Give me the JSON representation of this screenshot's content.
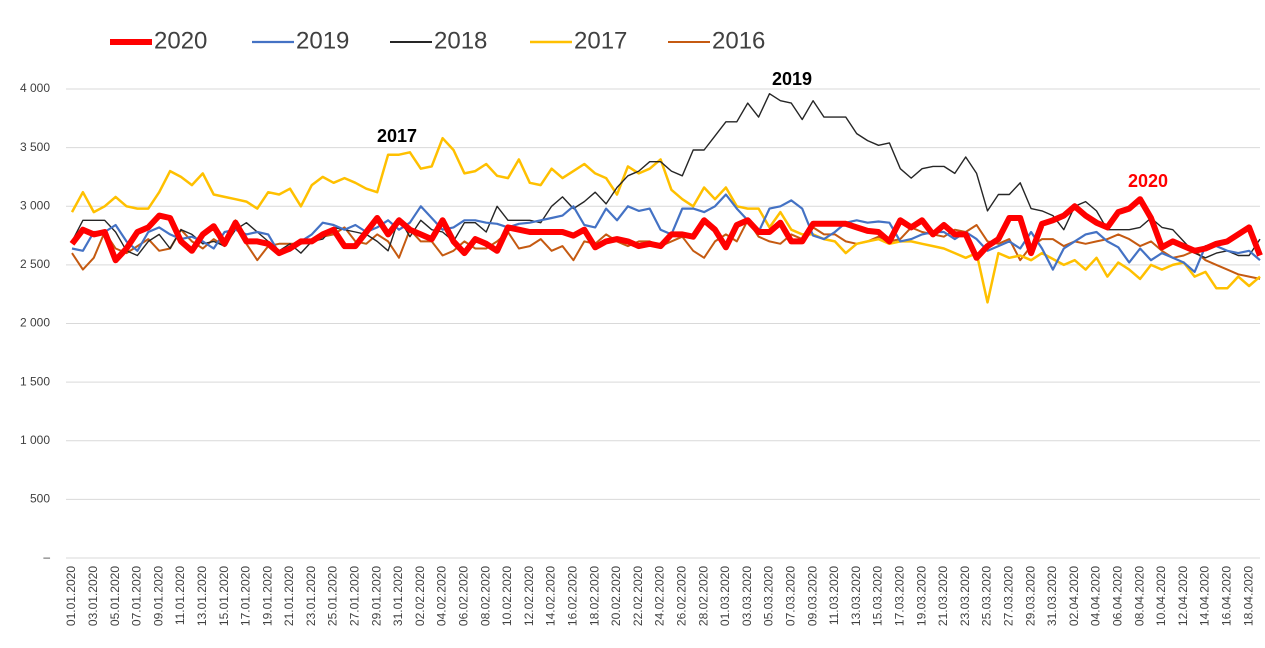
{
  "chart_data": {
    "type": "line",
    "categories": [
      "01.01.2020",
      null,
      "03.01.2020",
      null,
      "05.01.2020",
      null,
      "07.01.2020",
      null,
      "09.01.2020",
      null,
      "11.01.2020",
      null,
      "13.01.2020",
      null,
      "15.01.2020",
      null,
      "17.01.2020",
      null,
      "19.01.2020",
      null,
      "21.01.2020",
      null,
      "23.01.2020",
      null,
      "25.01.2020",
      null,
      "27.01.2020",
      null,
      "29.01.2020",
      null,
      "31.01.2020",
      null,
      "02.02.2020",
      null,
      "04.02.2020",
      null,
      "06.02.2020",
      null,
      "08.02.2020",
      null,
      "10.02.2020",
      null,
      "12.02.2020",
      null,
      "14.02.2020",
      null,
      "16.02.2020",
      null,
      "18.02.2020",
      null,
      "20.02.2020",
      null,
      "22.02.2020",
      null,
      "24.02.2020",
      null,
      "26.02.2020",
      null,
      "28.02.2020",
      null,
      "01.03.2020",
      null,
      "03.03.2020",
      null,
      "05.03.2020",
      null,
      "07.03.2020",
      null,
      "09.03.2020",
      null,
      "11.03.2020",
      null,
      "13.03.2020",
      null,
      "15.03.2020",
      null,
      "17.03.2020",
      null,
      "19.03.2020",
      null,
      "21.03.2020",
      null,
      "23.03.2020",
      null,
      "25.03.2020",
      null,
      "27.03.2020",
      null,
      "29.03.2020",
      null,
      "31.03.2020",
      null,
      "02.04.2020",
      null,
      "04.04.2020",
      null,
      "06.04.2020",
      null,
      "08.04.2020",
      null,
      "10.04.2020",
      null,
      "12.04.2020",
      null,
      "14.04.2020",
      null,
      "16.04.2020",
      null,
      "18.04.2020",
      null
    ],
    "series": [
      {
        "name": "2020",
        "color": "#ff0000",
        "values": [
          2680,
          2800,
          2760,
          2780,
          2540,
          2640,
          2780,
          2820,
          2920,
          2900,
          2700,
          2620,
          2760,
          2830,
          2680,
          2860,
          2700,
          2700,
          2680,
          2600,
          2640,
          2700,
          2700,
          2760,
          2800,
          2660,
          2660,
          2780,
          2900,
          2760,
          2880,
          2800,
          2760,
          2720,
          2880,
          2700,
          2600,
          2720,
          2680,
          2620,
          2820,
          2800,
          2780,
          2780,
          2780,
          2780,
          2750,
          2800,
          2650,
          2700,
          2720,
          2700,
          2660,
          2680,
          2660,
          2760,
          2760,
          2740,
          2880,
          2800,
          2650,
          2840,
          2880,
          2780,
          2780,
          2860,
          2700,
          2700,
          2850,
          2850,
          2850,
          2850,
          2820,
          2790,
          2780,
          2700,
          2880,
          2820,
          2880,
          2760,
          2840,
          2760,
          2760,
          2560,
          2660,
          2720,
          2900,
          2900,
          2600,
          2850,
          2880,
          2920,
          3000,
          2920,
          2860,
          2820,
          2950,
          2980,
          3060,
          2900,
          2650,
          2700,
          2660,
          2620,
          2640,
          2680,
          2700,
          2760,
          2820,
          2580
        ]
      },
      {
        "name": "2019",
        "color": "#4472c4",
        "values": [
          2640,
          2620,
          2780,
          2780,
          2840,
          2700,
          2620,
          2780,
          2820,
          2760,
          2720,
          2740,
          2700,
          2640,
          2780,
          2800,
          2760,
          2780,
          2760,
          2600,
          2620,
          2700,
          2760,
          2860,
          2840,
          2800,
          2840,
          2780,
          2820,
          2880,
          2800,
          2860,
          3000,
          2900,
          2800,
          2820,
          2880,
          2880,
          2860,
          2850,
          2820,
          2850,
          2860,
          2880,
          2900,
          2920,
          3000,
          2840,
          2820,
          2980,
          2880,
          3000,
          2960,
          2980,
          2800,
          2760,
          2980,
          2980,
          2950,
          3000,
          3100,
          2980,
          2880,
          2780,
          2980,
          3000,
          3050,
          2980,
          2750,
          2720,
          2780,
          2860,
          2880,
          2860,
          2870,
          2860,
          2700,
          2720,
          2760,
          2780,
          2780,
          2720,
          2780,
          2720,
          2620,
          2660,
          2700,
          2640,
          2780,
          2640,
          2460,
          2640,
          2700,
          2760,
          2780,
          2700,
          2650,
          2520,
          2640,
          2540,
          2600,
          2560,
          2520,
          2440,
          2660,
          2660,
          2620,
          2600,
          2620,
          2540
        ]
      },
      {
        "name": "2018",
        "color": "#262626",
        "values": [
          2700,
          2880,
          2880,
          2880,
          2780,
          2620,
          2580,
          2700,
          2760,
          2640,
          2800,
          2760,
          2680,
          2700,
          2660,
          2800,
          2860,
          2780,
          2700,
          2620,
          2680,
          2600,
          2700,
          2720,
          2820,
          2800,
          2780,
          2760,
          2700,
          2620,
          2900,
          2740,
          2880,
          2800,
          2780,
          2700,
          2860,
          2860,
          2780,
          3000,
          2880,
          2880,
          2880,
          2860,
          3000,
          3080,
          2980,
          3040,
          3120,
          3020,
          3160,
          3260,
          3300,
          3380,
          3380,
          3300,
          3260,
          3480,
          3480,
          3600,
          3720,
          3720,
          3880,
          3760,
          3960,
          3900,
          3880,
          3740,
          3900,
          3760,
          3760,
          3760,
          3620,
          3560,
          3520,
          3540,
          3320,
          3240,
          3320,
          3340,
          3340,
          3280,
          3420,
          3280,
          2960,
          3100,
          3100,
          3200,
          2980,
          2960,
          2920,
          2800,
          3000,
          3040,
          2960,
          2800,
          2800,
          2800,
          2820,
          2900,
          2820,
          2800,
          2700,
          2600,
          2560,
          2600,
          2620,
          2580,
          2580,
          2720
        ]
      },
      {
        "name": "2017",
        "color": "#ffc000",
        "values": [
          2950,
          3120,
          2950,
          3000,
          3080,
          3000,
          2980,
          2980,
          3120,
          3300,
          3250,
          3180,
          3280,
          3100,
          3080,
          3060,
          3040,
          2980,
          3120,
          3100,
          3150,
          3000,
          3180,
          3250,
          3200,
          3240,
          3200,
          3150,
          3120,
          3440,
          3440,
          3460,
          3320,
          3340,
          3580,
          3480,
          3280,
          3300,
          3360,
          3260,
          3240,
          3400,
          3200,
          3180,
          3320,
          3240,
          3300,
          3360,
          3280,
          3240,
          3100,
          3340,
          3280,
          3320,
          3400,
          3140,
          3060,
          3000,
          3160,
          3060,
          3160,
          3000,
          2980,
          2980,
          2820,
          2950,
          2800,
          2760,
          2760,
          2720,
          2700,
          2600,
          2680,
          2700,
          2720,
          2680,
          2700,
          2700,
          2680,
          2660,
          2640,
          2600,
          2560,
          2600,
          2180,
          2600,
          2560,
          2580,
          2540,
          2600,
          2550,
          2500,
          2540,
          2460,
          2560,
          2400,
          2520,
          2460,
          2380,
          2500,
          2460,
          2500,
          2520,
          2400,
          2440,
          2300,
          2300,
          2400,
          2320,
          2400
        ]
      },
      {
        "name": "2016",
        "color": "#c55a11",
        "values": [
          2600,
          2460,
          2560,
          2780,
          2640,
          2600,
          2660,
          2720,
          2620,
          2640,
          2800,
          2700,
          2640,
          2720,
          2660,
          2880,
          2680,
          2540,
          2660,
          2680,
          2680,
          2680,
          2700,
          2740,
          2760,
          2820,
          2700,
          2680,
          2760,
          2700,
          2560,
          2800,
          2700,
          2700,
          2580,
          2620,
          2700,
          2640,
          2640,
          2700,
          2780,
          2640,
          2660,
          2720,
          2620,
          2660,
          2540,
          2700,
          2680,
          2760,
          2700,
          2660,
          2700,
          2700,
          2660,
          2700,
          2740,
          2620,
          2560,
          2700,
          2760,
          2700,
          2880,
          2740,
          2700,
          2680,
          2760,
          2720,
          2820,
          2760,
          2760,
          2700,
          2680,
          2700,
          2740,
          2700,
          2720,
          2820,
          2780,
          2760,
          2740,
          2800,
          2780,
          2840,
          2700,
          2680,
          2720,
          2540,
          2660,
          2720,
          2720,
          2660,
          2700,
          2680,
          2700,
          2720,
          2760,
          2720,
          2660,
          2700,
          2620,
          2560,
          2580,
          2620,
          2540,
          2500,
          2460,
          2420,
          2400,
          2380
        ]
      }
    ],
    "annotations": [
      "2017",
      "2019",
      "2020"
    ],
    "ylim": [
      0,
      4000
    ],
    "yticks": [
      {
        "value": 0,
        "label": "–"
      },
      500,
      {
        "value": 1000,
        "label": "1 000"
      },
      {
        "value": 1500,
        "label": "1 500"
      },
      {
        "value": 2000,
        "label": "2 000"
      },
      {
        "value": 2500,
        "label": "2 500"
      },
      {
        "value": 3000,
        "label": "3 000"
      },
      {
        "value": 3500,
        "label": "3 500"
      },
      {
        "value": 4000,
        "label": "4 000"
      }
    ],
    "grid": true,
    "legend": "top"
  }
}
